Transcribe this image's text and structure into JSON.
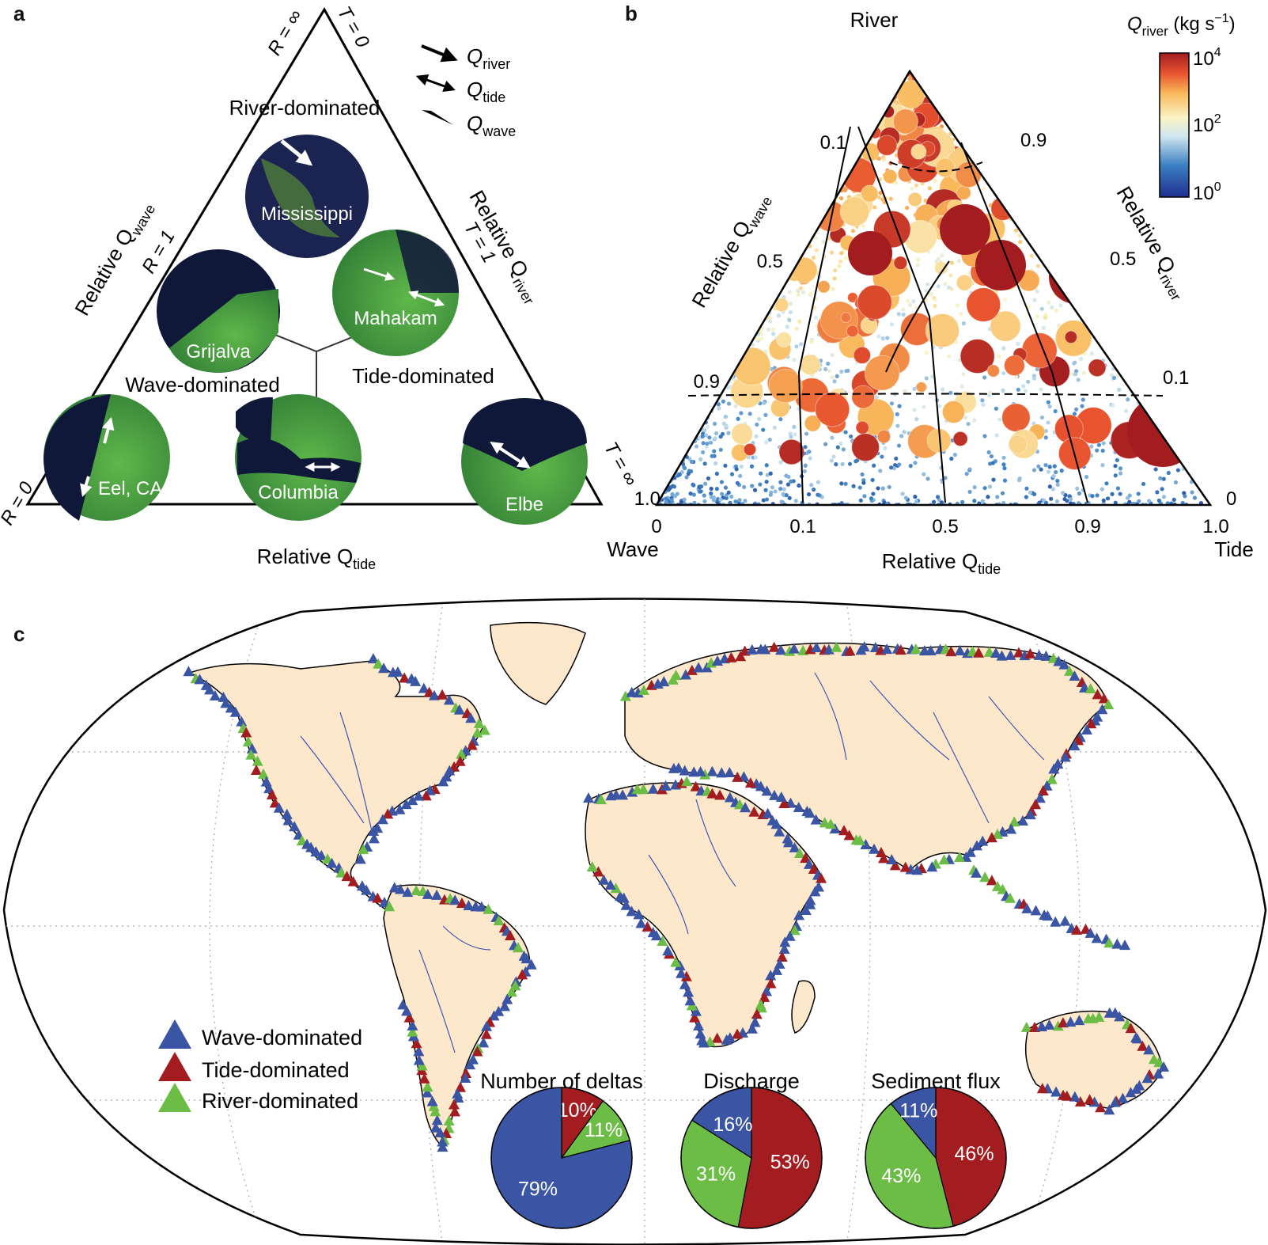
{
  "panel_a": {
    "letter": "a",
    "zones": {
      "river": "River-dominated",
      "wave": "Wave-dominated",
      "tide": "Tide-dominated"
    },
    "axis_wave": "Relative Q",
    "axis_wave_sub": "wave",
    "axis_river": "Relative Q",
    "axis_river_sub": "river",
    "axis_tide": "Relative Q",
    "axis_tide_sub": "tide",
    "param_r_inf": "R = ∞",
    "param_t_0": "T = 0",
    "param_r_1": "R = 1",
    "param_t_1": "T = 1",
    "param_r_0": "R = 0",
    "param_t_inf": "T = ∞",
    "legend": [
      {
        "symbol": "Q",
        "sub": "river"
      },
      {
        "symbol": "Q",
        "sub": "tide"
      },
      {
        "symbol": "Q",
        "sub": "wave"
      }
    ],
    "deltas": [
      "Mississippi",
      "Grijalva",
      "Mahakam",
      "Eel, CA",
      "Columbia",
      "Elbe"
    ]
  },
  "panel_b": {
    "letter": "b",
    "corner_river": "River",
    "corner_wave": "Wave",
    "corner_tide": "Tide",
    "colorbar_title_symbol": "Q",
    "colorbar_title_sub": "river",
    "colorbar_title_unit": " (kg s",
    "colorbar_title_exp": "−1",
    "colorbar_title_close": ")",
    "colorbar_ticks": [
      {
        "base": "10",
        "exp": "4"
      },
      {
        "base": "10",
        "exp": "2"
      },
      {
        "base": "10",
        "exp": "0"
      }
    ],
    "left_ticks": [
      "0.1",
      "0.5",
      "0.9",
      "1.0"
    ],
    "right_ticks": [
      "0.9",
      "0.5",
      "0.1",
      "0"
    ],
    "bottom_ticks": [
      "0",
      "0.1",
      "0.5",
      "0.9",
      "1.0"
    ],
    "axis_wave": "Relative Q",
    "axis_wave_sub": "wave",
    "axis_river": "Relative Q",
    "axis_river_sub": "river",
    "axis_tide": "Relative Q",
    "axis_tide_sub": "tide"
  },
  "panel_c": {
    "letter": "c",
    "legend": [
      {
        "label": "Wave-dominated",
        "color": "#3a55a4"
      },
      {
        "label": "Tide-dominated",
        "color": "#a31d20"
      },
      {
        "label": "River-dominated",
        "color": "#6cbd45"
      }
    ]
  },
  "colors": {
    "wave": "#3a55a4",
    "tide": "#a31d20",
    "river": "#6cbd45",
    "land": "#fde8cc",
    "river_lines": "#3f57b5"
  },
  "chart_data": [
    {
      "type": "scatter",
      "title": "",
      "description_axes": [
        "Relative Qwave",
        "Relative Qriver",
        "Relative Qtide"
      ],
      "colorbar": {
        "label": "Qriver (kg s−1)",
        "scale": "log",
        "range": [
          1,
          10000
        ]
      },
      "contour_levels": [
        0.1,
        0.5,
        0.9
      ]
    },
    {
      "type": "pie",
      "title": "Number of deltas",
      "labels": [
        "Wave-dominated",
        "Tide-dominated",
        "River-dominated"
      ],
      "values": [
        79,
        10,
        11
      ],
      "value_labels": [
        "79%",
        "10%",
        "11%"
      ]
    },
    {
      "type": "pie",
      "title": "Discharge",
      "labels": [
        "Wave-dominated",
        "Tide-dominated",
        "River-dominated"
      ],
      "values": [
        16,
        53,
        31
      ],
      "value_labels": [
        "16%",
        "53%",
        "31%"
      ]
    },
    {
      "type": "pie",
      "title": "Sediment flux",
      "labels": [
        "Wave-dominated",
        "Tide-dominated",
        "River-dominated"
      ],
      "values": [
        11,
        46,
        43
      ],
      "value_labels": [
        "11%",
        "46%",
        "43%"
      ]
    }
  ]
}
